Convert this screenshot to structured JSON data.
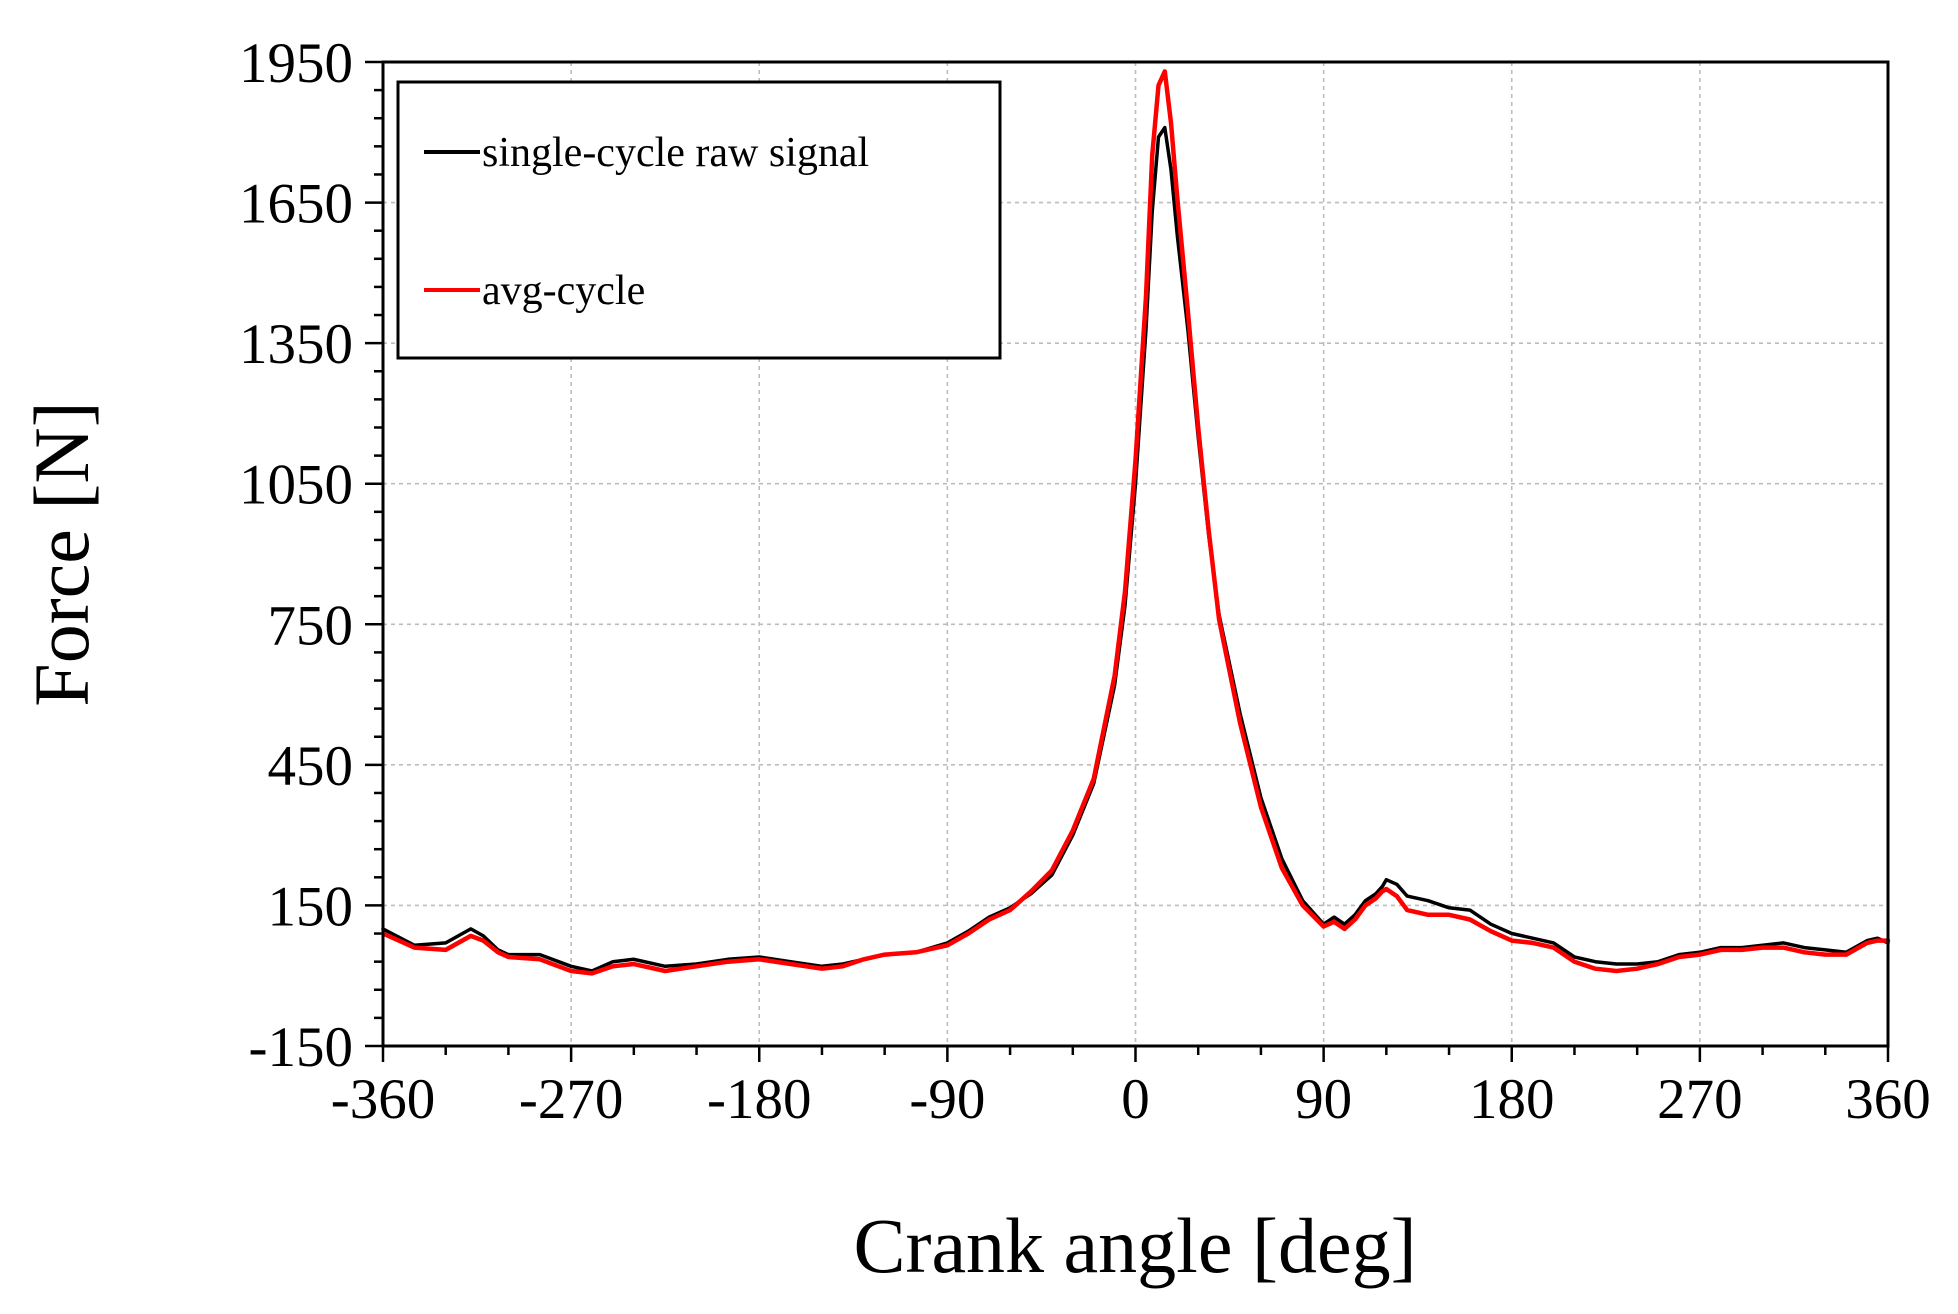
{
  "chart_data": {
    "type": "line",
    "xlabel": "Crank angle [deg]",
    "ylabel": "Force [N]",
    "xlim": [
      -360,
      360
    ],
    "ylim": [
      -150,
      1950
    ],
    "grid": true,
    "legend_position": "top-left",
    "x_ticks": [
      "-360",
      "-270",
      "-180",
      "-90",
      "0",
      "90",
      "180",
      "270",
      "360"
    ],
    "x_tick_values": [
      -360,
      -270,
      -180,
      -90,
      0,
      90,
      180,
      270,
      360
    ],
    "y_ticks": [
      "-150",
      "150",
      "450",
      "750",
      "1050",
      "1350",
      "1650",
      "1950"
    ],
    "y_tick_values": [
      -150,
      150,
      450,
      750,
      1050,
      1350,
      1650,
      1950
    ],
    "series": [
      {
        "name": "single-cycle raw signal",
        "color": "#000000",
        "x": [
          -360,
          -345,
          -330,
          -318,
          -312,
          -305,
          -300,
          -285,
          -270,
          -260,
          -250,
          -240,
          -225,
          -210,
          -195,
          -180,
          -165,
          -150,
          -140,
          -130,
          -120,
          -105,
          -90,
          -80,
          -70,
          -60,
          -50,
          -40,
          -30,
          -20,
          -10,
          -5,
          0,
          5,
          8,
          11,
          14,
          17,
          20,
          25,
          30,
          35,
          40,
          50,
          60,
          70,
          80,
          90,
          95,
          100,
          105,
          110,
          115,
          118,
          120,
          125,
          130,
          140,
          150,
          160,
          170,
          180,
          190,
          200,
          210,
          220,
          230,
          240,
          250,
          260,
          270,
          280,
          290,
          300,
          310,
          320,
          330,
          340,
          350,
          355,
          360
        ],
        "y": [
          100,
          65,
          70,
          100,
          85,
          55,
          45,
          45,
          20,
          10,
          30,
          35,
          20,
          25,
          35,
          40,
          30,
          20,
          25,
          35,
          45,
          50,
          70,
          95,
          125,
          145,
          175,
          215,
          300,
          410,
          620,
          790,
          1050,
          1380,
          1630,
          1790,
          1810,
          1720,
          1580,
          1380,
          1150,
          940,
          770,
          560,
          380,
          250,
          160,
          110,
          125,
          110,
          130,
          160,
          175,
          190,
          205,
          195,
          170,
          160,
          145,
          140,
          110,
          90,
          80,
          70,
          40,
          30,
          25,
          25,
          30,
          45,
          50,
          60,
          60,
          65,
          70,
          60,
          55,
          50,
          75,
          80,
          70
        ]
      },
      {
        "name": "avg-cycle",
        "color": "#ff0000",
        "x": [
          -360,
          -345,
          -330,
          -318,
          -312,
          -305,
          -300,
          -285,
          -270,
          -260,
          -250,
          -240,
          -225,
          -210,
          -195,
          -180,
          -165,
          -150,
          -140,
          -130,
          -120,
          -105,
          -90,
          -80,
          -70,
          -60,
          -50,
          -40,
          -30,
          -20,
          -10,
          -5,
          0,
          5,
          8,
          11,
          14,
          17,
          20,
          25,
          30,
          35,
          40,
          50,
          60,
          70,
          80,
          90,
          95,
          100,
          105,
          110,
          115,
          118,
          120,
          125,
          130,
          140,
          150,
          160,
          170,
          180,
          190,
          200,
          210,
          220,
          230,
          240,
          250,
          260,
          270,
          280,
          290,
          300,
          310,
          320,
          330,
          340,
          350,
          355,
          360
        ],
        "y": [
          90,
          60,
          55,
          85,
          75,
          50,
          40,
          35,
          10,
          5,
          20,
          25,
          10,
          20,
          30,
          35,
          25,
          15,
          20,
          35,
          45,
          50,
          65,
          90,
          120,
          140,
          180,
          225,
          310,
          420,
          640,
          820,
          1100,
          1450,
          1750,
          1900,
          1930,
          1820,
          1660,
          1420,
          1170,
          950,
          760,
          540,
          360,
          230,
          150,
          105,
          115,
          100,
          120,
          150,
          165,
          180,
          185,
          170,
          140,
          130,
          130,
          120,
          95,
          75,
          70,
          60,
          30,
          15,
          10,
          15,
          25,
          40,
          45,
          55,
          55,
          60,
          60,
          50,
          45,
          45,
          70,
          75,
          75
        ]
      }
    ]
  }
}
